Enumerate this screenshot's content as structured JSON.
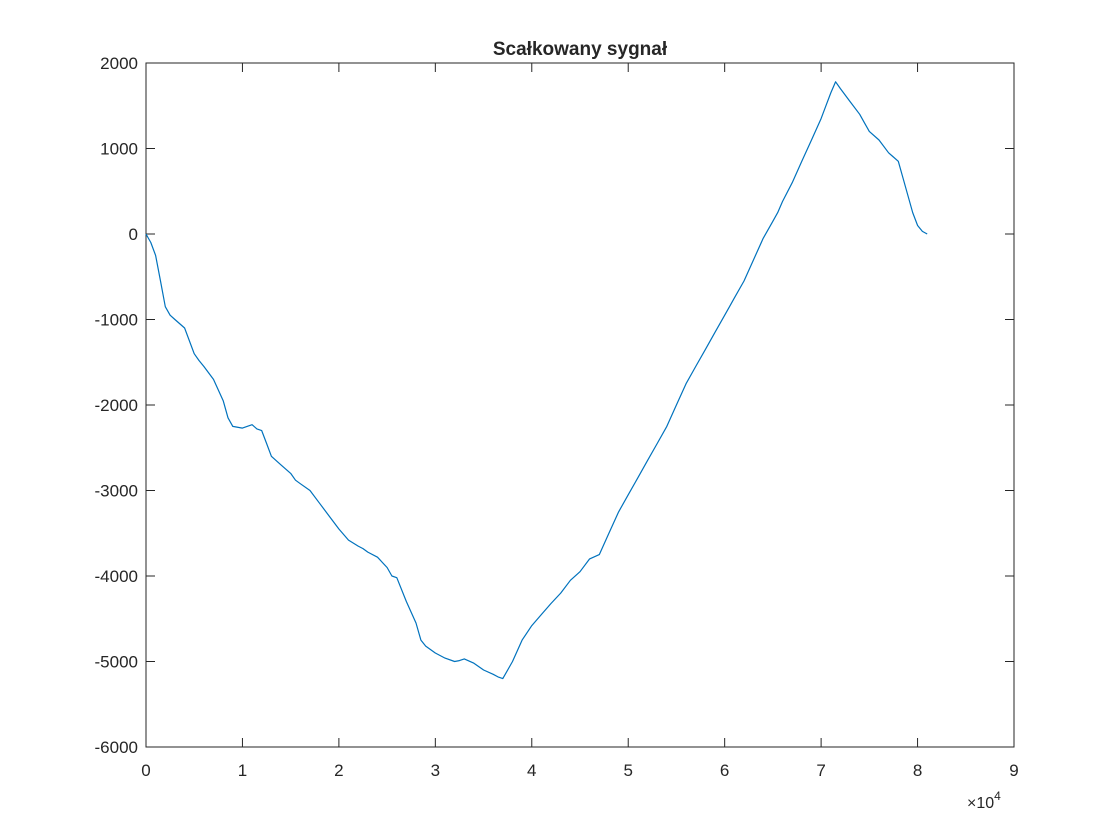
{
  "chart_data": {
    "type": "line",
    "title": "Scałkowany sygnał",
    "xlabel": "",
    "ylabel": "",
    "xlim": [
      0,
      90000
    ],
    "ylim": [
      -6000,
      2000
    ],
    "x_ticks": [
      0,
      10000,
      20000,
      30000,
      40000,
      50000,
      60000,
      70000,
      80000,
      90000
    ],
    "x_tick_labels": [
      "0",
      "1",
      "2",
      "3",
      "4",
      "5",
      "6",
      "7",
      "8",
      "9"
    ],
    "x_exponent_label": {
      "base": "×10",
      "power": "4"
    },
    "y_ticks": [
      -6000,
      -5000,
      -4000,
      -3000,
      -2000,
      -1000,
      0,
      1000,
      2000
    ],
    "y_tick_labels": [
      "-6000",
      "-5000",
      "-4000",
      "-3000",
      "-2000",
      "-1000",
      "0",
      "1000",
      "2000"
    ],
    "grid": false,
    "line_color": "#0072BD",
    "series": [
      {
        "x": [
          0,
          500,
          1000,
          1500,
          2000,
          2500,
          3000,
          4000,
          5000,
          5500,
          6000,
          7000,
          8000,
          8500,
          9000,
          10000,
          11000,
          11500,
          12000,
          12500,
          13000,
          14000,
          15000,
          15500,
          16000,
          17000,
          18000,
          19000,
          20000,
          21000,
          22000,
          22500,
          23000,
          24000,
          25000,
          25500,
          26000,
          27000,
          28000,
          28500,
          29000,
          30000,
          31000,
          32000,
          32500,
          33000,
          34000,
          35000,
          36000,
          36500,
          37000,
          38000,
          39000,
          40000,
          41000,
          42000,
          43000,
          44000,
          45000,
          46000,
          47000,
          48000,
          49000,
          50000,
          51000,
          52000,
          53000,
          54000,
          55000,
          56000,
          57000,
          58000,
          59000,
          60000,
          60500,
          61000,
          62000,
          63000,
          64000,
          65000,
          65500,
          66000,
          67000,
          68000,
          69000,
          70000,
          70500,
          71000,
          71500,
          72000,
          73000,
          74000,
          74500,
          75000,
          76000,
          77000,
          77500,
          78000,
          78500,
          79000,
          79500,
          80000,
          80500,
          81000
        ],
        "y": [
          0,
          -100,
          -250,
          -550,
          -850,
          -950,
          -1000,
          -1100,
          -1400,
          -1480,
          -1550,
          -1700,
          -1950,
          -2150,
          -2250,
          -2270,
          -2230,
          -2280,
          -2300,
          -2450,
          -2600,
          -2700,
          -2800,
          -2880,
          -2920,
          -3000,
          -3150,
          -3300,
          -3450,
          -3580,
          -3650,
          -3680,
          -3720,
          -3780,
          -3900,
          -4000,
          -4020,
          -4300,
          -4550,
          -4750,
          -4820,
          -4900,
          -4960,
          -5000,
          -4990,
          -4970,
          -5020,
          -5100,
          -5150,
          -5180,
          -5200,
          -5000,
          -4750,
          -4580,
          -4450,
          -4320,
          -4200,
          -4050,
          -3950,
          -3800,
          -3750,
          -3500,
          -3250,
          -3050,
          -2850,
          -2650,
          -2450,
          -2250,
          -2000,
          -1750,
          -1550,
          -1350,
          -1150,
          -950,
          -850,
          -750,
          -550,
          -300,
          -50,
          150,
          250,
          380,
          600,
          850,
          1100,
          1350,
          1500,
          1650,
          1780,
          1700,
          1550,
          1400,
          1300,
          1200,
          1100,
          950,
          900,
          850,
          650,
          450,
          250,
          100,
          30,
          0
        ]
      }
    ]
  }
}
